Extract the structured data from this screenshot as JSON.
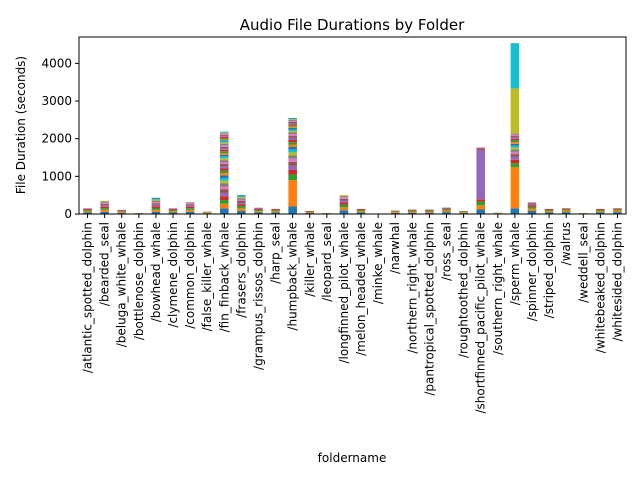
{
  "chart_data": {
    "type": "bar",
    "stacked": true,
    "title": "Audio File Durations by Folder",
    "xlabel": "foldername",
    "ylabel": "File Duration (seconds)",
    "ylim": [
      0,
      4700
    ],
    "yticks": [
      0,
      1000,
      2000,
      3000,
      4000
    ],
    "legend": "none",
    "grid": false,
    "palette": [
      "#1f77b4",
      "#ff7f0e",
      "#2ca02c",
      "#d62728",
      "#9467bd",
      "#8c564b",
      "#e377c2",
      "#7f7f7f",
      "#bcbd22",
      "#17becf"
    ],
    "categories": [
      "/atlantic_spotted_dolphin",
      "/bearded_seal",
      "/beluga_white_whale",
      "/bottlenose_dolphin",
      "/bowhead_whale",
      "/clymene_dolphin",
      "/common_dolphin",
      "/false_killer_whale",
      "/fin_finback_whale",
      "/frasers_dolphin",
      "/grampus_rissos_dolphin",
      "/harp_seal",
      "/humpback_whale",
      "/killer_whale",
      "/leopard_seal",
      "/longfinned_pilot_whale",
      "/melon_headed_whale",
      "/minke_whale",
      "/narwhal",
      "/northern_right_whale",
      "/pantropical_spotted_dolphin",
      "/ross_seal",
      "/roughtoothed_dolphin",
      "/shortfinned_pacific_pilot_whale",
      "/southern_right_whale",
      "/sperm_whale",
      "/spinner_dolphin",
      "/striped_dolphin",
      "/walrus",
      "/weddell_seal",
      "/whitebeaked_dolphin",
      "/whitesided_dolphin"
    ],
    "segments": [
      [
        40,
        35,
        30,
        25,
        20
      ],
      [
        60,
        50,
        45,
        40,
        40,
        35,
        30,
        30,
        20
      ],
      [
        30,
        25,
        20,
        20,
        15
      ],
      [
        10,
        8,
        7
      ],
      [
        60,
        50,
        50,
        45,
        40,
        40,
        35,
        35,
        30,
        25,
        20
      ],
      [
        40,
        35,
        30,
        25,
        20
      ],
      [
        60,
        50,
        45,
        40,
        35,
        30,
        30,
        20
      ],
      [
        20,
        15,
        15,
        10
      ],
      [
        150,
        120,
        100,
        100,
        90,
        90,
        80,
        80,
        75,
        70,
        70,
        65,
        60,
        60,
        60,
        55,
        55,
        50,
        50,
        50,
        45,
        45,
        45,
        40,
        40,
        40,
        40,
        35,
        35,
        35,
        30,
        30,
        30,
        30,
        25,
        25,
        25,
        20,
        20,
        20
      ],
      [
        80,
        70,
        60,
        50,
        45,
        40,
        40,
        35,
        30,
        30,
        20
      ],
      [
        40,
        35,
        30,
        25,
        20,
        15
      ],
      [
        40,
        35,
        30,
        25
      ],
      [
        200,
        700,
        150,
        120,
        110,
        100,
        90,
        85,
        80,
        75,
        70,
        65,
        60,
        60,
        55,
        50,
        50,
        45,
        40,
        40,
        40,
        35,
        35,
        30,
        30,
        30,
        25,
        25,
        20,
        20,
        15
      ],
      [
        25,
        20,
        20,
        15
      ],
      [
        10,
        8,
        7
      ],
      [
        100,
        80,
        70,
        60,
        50,
        45,
        40,
        30,
        25
      ],
      [
        40,
        35,
        30,
        25
      ],
      [
        5,
        5
      ],
      [
        30,
        25,
        20,
        15
      ],
      [
        35,
        30,
        25,
        20,
        10
      ],
      [
        35,
        30,
        25,
        20,
        10
      ],
      [
        50,
        40,
        35,
        25,
        20
      ],
      [
        25,
        20,
        20,
        10
      ],
      [
        120,
        110,
        100,
        60,
        1300,
        50,
        30
      ],
      [
        15,
        10,
        8
      ],
      [
        150,
        1100,
        100,
        90,
        80,
        70,
        60,
        60,
        55,
        50,
        50,
        45,
        45,
        40,
        40,
        35,
        35,
        30,
        1200,
        1200
      ],
      [
        80,
        60,
        50,
        45,
        40,
        30
      ],
      [
        40,
        35,
        30,
        25
      ],
      [
        50,
        40,
        35,
        25
      ],
      [
        10,
        8,
        7
      ],
      [
        40,
        35,
        30,
        25
      ],
      [
        50,
        40,
        35,
        25
      ]
    ]
  }
}
